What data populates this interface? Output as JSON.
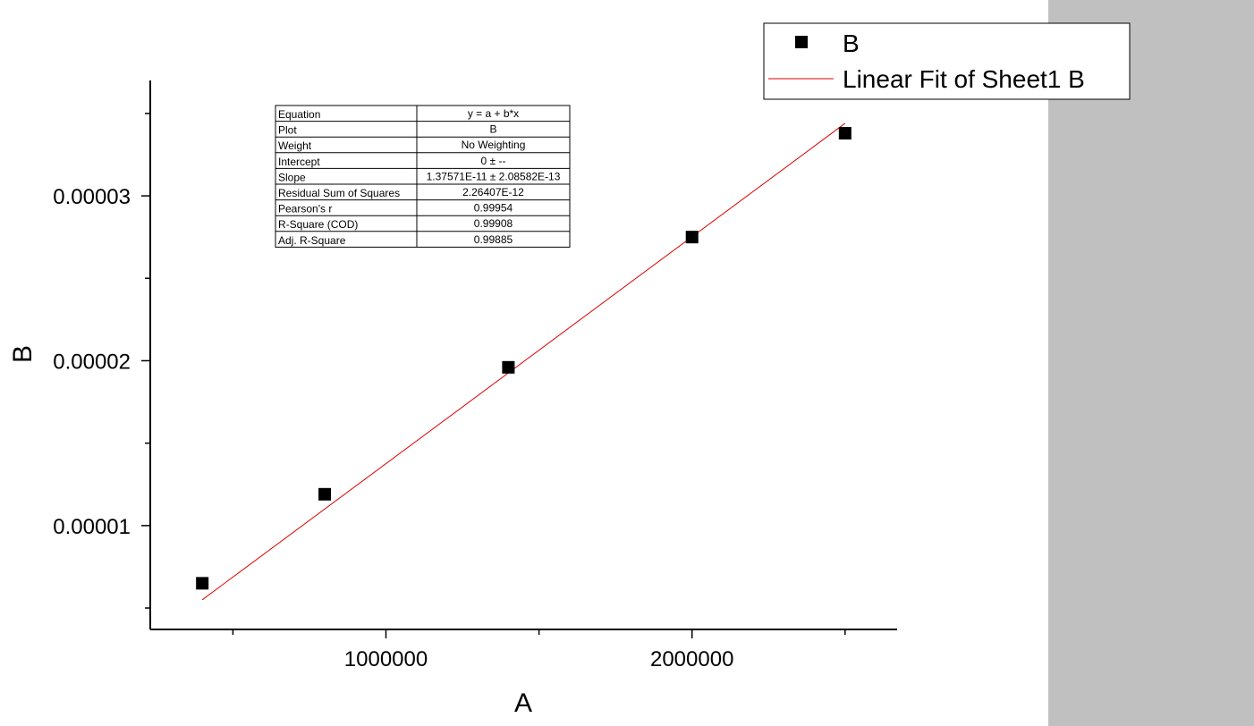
{
  "chart_data": {
    "type": "scatter",
    "xlabel": "A",
    "ylabel": "B",
    "xlim": [
      230000,
      2670000
    ],
    "ylim": [
      3.7e-06,
      3.7e-05
    ],
    "xticks_major": [
      1000000,
      2000000
    ],
    "xtick_labels": [
      "1000000",
      "2000000"
    ],
    "xticks_minor": [
      500000,
      1500000,
      2500000
    ],
    "yticks_major": [
      1e-05,
      2e-05,
      3e-05
    ],
    "ytick_labels": [
      "0.00001",
      "0.00002",
      "0.00003"
    ],
    "yticks_minor": [
      5e-06,
      1.5e-05,
      2.5e-05,
      3.5e-05
    ],
    "grid": false,
    "legend_placement": "top-right",
    "series": [
      {
        "name": "B",
        "kind": "scatter",
        "marker": "square",
        "color": "#000000",
        "x": [
          400000,
          800000,
          1400000,
          2000000,
          2500000
        ],
        "y": [
          6.5e-06,
          1.19e-05,
          1.96e-05,
          2.75e-05,
          3.38e-05
        ]
      },
      {
        "name": "Linear Fit of Sheet1 B",
        "kind": "line",
        "color": "#e00000",
        "x": [
          400000,
          2500000
        ],
        "y": [
          5.5e-06,
          3.44e-05
        ]
      }
    ],
    "fit_table": [
      [
        "Equation",
        "y = a + b*x"
      ],
      [
        "Plot",
        "B"
      ],
      [
        "Weight",
        "No Weighting"
      ],
      [
        "Intercept",
        "0 ± --"
      ],
      [
        "Slope",
        "1.37571E-11 ± 2.08582E-13"
      ],
      [
        "Residual Sum of Squares",
        "2.26407E-12"
      ],
      [
        "Pearson's r",
        "0.99954"
      ],
      [
        "R-Square (COD)",
        "0.99908"
      ],
      [
        "Adj. R-Square",
        "0.99885"
      ]
    ]
  }
}
